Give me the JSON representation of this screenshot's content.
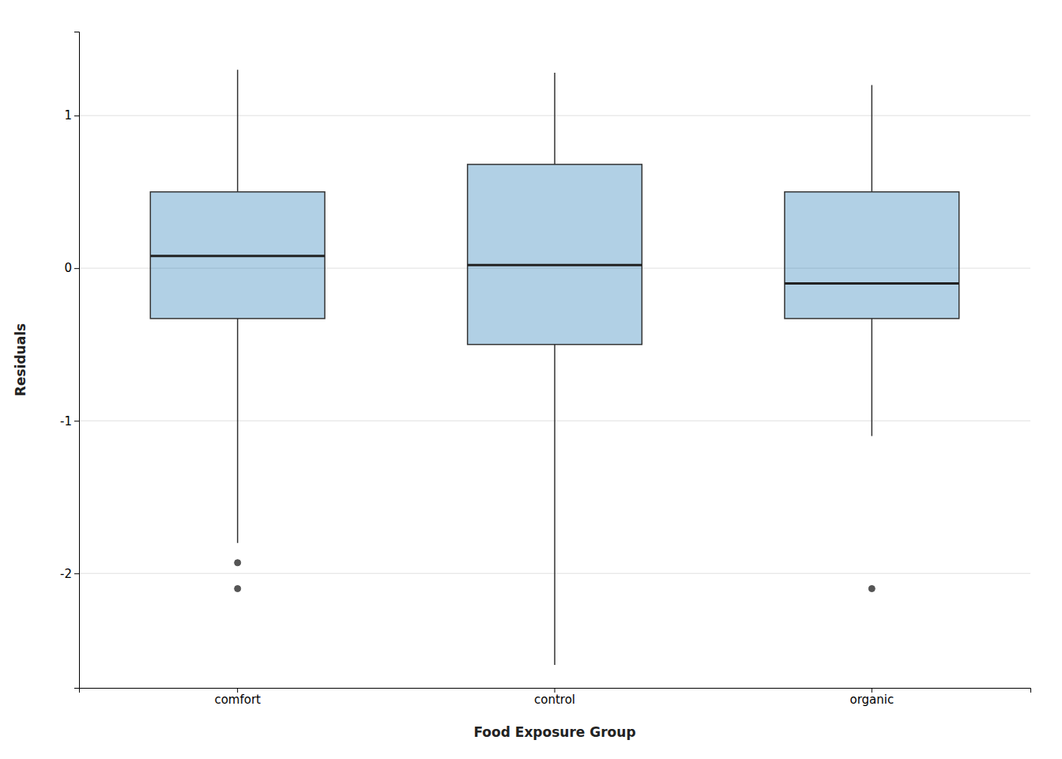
{
  "chart_data": {
    "type": "box",
    "xlabel": "Food Exposure Group",
    "ylabel": "Residuals",
    "categories": [
      "comfort",
      "control",
      "organic"
    ],
    "values": [
      {
        "median": 0.08,
        "q1": -0.33,
        "q3": 0.5,
        "whisker_low": -1.8,
        "whisker_high": 1.3,
        "outliers": [
          -1.93,
          -2.1
        ]
      },
      {
        "median": 0.02,
        "q1": -0.5,
        "q3": 0.68,
        "whisker_low": -2.6,
        "whisker_high": 1.28,
        "outliers": []
      },
      {
        "median": -0.1,
        "q1": -0.33,
        "q3": 0.5,
        "whisker_low": -1.1,
        "whisker_high": 1.2,
        "outliers": [
          -2.1
        ]
      }
    ],
    "ylim": [
      -2.75,
      1.55
    ],
    "yticks": [
      -2,
      -1,
      0,
      1
    ],
    "grid": true
  }
}
